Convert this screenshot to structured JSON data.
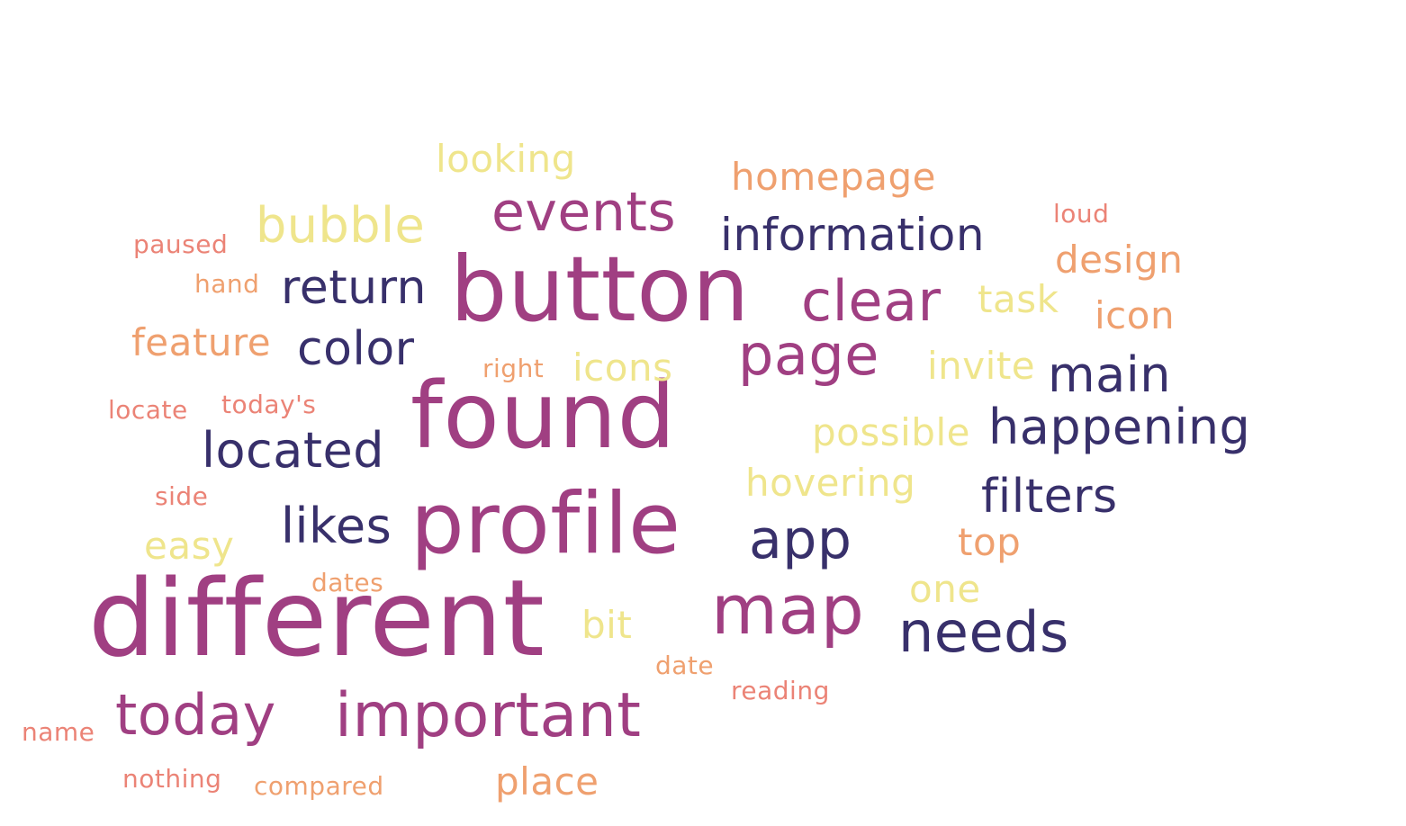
{
  "colors": {
    "background": "#FFFFFF",
    "tier_1": "#A03F82",
    "tier_2": "#38306B",
    "tier_3": "#EFE58C",
    "tier_4": "#EFA06F",
    "tier_5": "#EB8376"
  },
  "words": [
    "different",
    "found",
    "profile",
    "button",
    "map",
    "important",
    "page",
    "today",
    "events",
    "clear",
    "information",
    "needs",
    "happening",
    "app",
    "located",
    "filters",
    "main",
    "return",
    "likes",
    "color",
    "bubble",
    "looking",
    "hovering",
    "possible",
    "icons",
    "easy",
    "task",
    "invite",
    "one",
    "bit",
    "homepage",
    "design",
    "icon",
    "feature",
    "place",
    "top",
    "hand",
    "right",
    "dates",
    "date",
    "compared",
    "loud",
    "paused",
    "locate",
    "today's",
    "side",
    "reading",
    "name",
    "nothing"
  ]
}
